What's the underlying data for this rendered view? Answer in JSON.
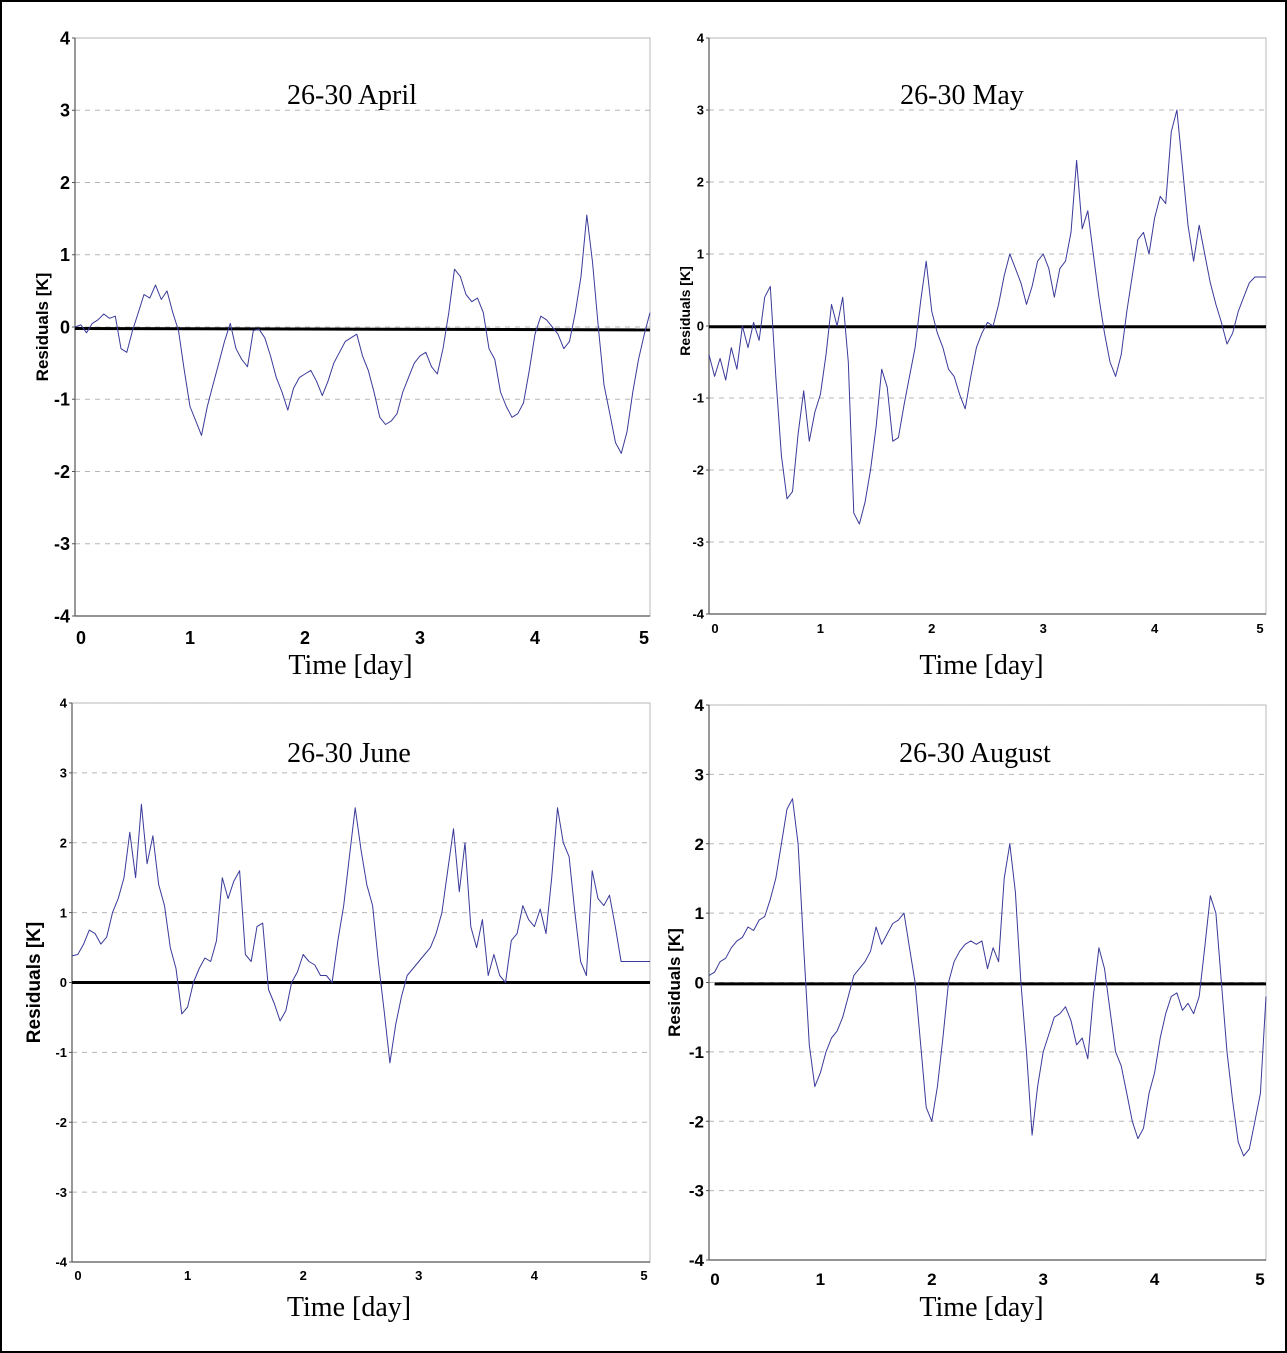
{
  "chart_data": [
    {
      "type": "line",
      "title": "26-30 April",
      "xlabel": "Time [day]",
      "ylabel": "Residuals [K]",
      "xlim": [
        0,
        5
      ],
      "ylim": [
        -4,
        4
      ],
      "xticks": [
        "0",
        "1",
        "2",
        "3",
        "4",
        "5"
      ],
      "yticks": [
        "4",
        "3",
        "2",
        "1",
        "0",
        "-1",
        "-2",
        "-3",
        "-4"
      ],
      "grid": true,
      "baseline": [
        [
          0,
          -0.02
        ],
        [
          5,
          -0.04
        ]
      ],
      "series": [
        {
          "color": "#3a3a9a",
          "x": [
            0,
            0.05,
            0.1,
            0.15,
            0.2,
            0.25,
            0.3,
            0.35,
            0.4,
            0.45,
            0.5,
            0.55,
            0.6,
            0.65,
            0.7,
            0.75,
            0.8,
            0.85,
            0.9,
            0.95,
            1.0,
            1.05,
            1.1,
            1.15,
            1.2,
            1.25,
            1.3,
            1.35,
            1.4,
            1.45,
            1.5,
            1.55,
            1.6,
            1.65,
            1.7,
            1.75,
            1.8,
            1.85,
            1.9,
            1.95,
            2.0,
            2.05,
            2.1,
            2.15,
            2.2,
            2.25,
            2.3,
            2.35,
            2.4,
            2.45,
            2.5,
            2.55,
            2.6,
            2.65,
            2.7,
            2.75,
            2.8,
            2.85,
            2.9,
            2.95,
            3.0,
            3.05,
            3.1,
            3.15,
            3.2,
            3.25,
            3.3,
            3.35,
            3.4,
            3.45,
            3.5,
            3.55,
            3.6,
            3.65,
            3.7,
            3.75,
            3.8,
            3.85,
            3.9,
            3.95,
            4.0,
            4.05,
            4.1,
            4.15,
            4.2,
            4.25,
            4.3,
            4.35,
            4.4,
            4.45,
            4.5,
            4.55,
            4.6,
            4.65,
            4.7,
            4.75,
            4.8,
            4.85,
            4.9,
            4.95,
            5.0
          ],
          "y": [
            0.0,
            0.03,
            -0.08,
            0.05,
            0.1,
            0.18,
            0.12,
            0.15,
            -0.3,
            -0.35,
            -0.05,
            0.2,
            0.45,
            0.4,
            0.58,
            0.38,
            0.5,
            0.2,
            -0.05,
            -0.6,
            -1.1,
            -1.3,
            -1.5,
            -1.1,
            -0.8,
            -0.5,
            -0.2,
            0.05,
            -0.3,
            -0.45,
            -0.55,
            -0.05,
            -0.03,
            -0.15,
            -0.4,
            -0.7,
            -0.9,
            -1.15,
            -0.85,
            -0.7,
            -0.65,
            -0.6,
            -0.75,
            -0.95,
            -0.75,
            -0.5,
            -0.35,
            -0.2,
            -0.15,
            -0.1,
            -0.4,
            -0.6,
            -0.9,
            -1.25,
            -1.35,
            -1.3,
            -1.2,
            -0.9,
            -0.7,
            -0.5,
            -0.4,
            -0.35,
            -0.55,
            -0.65,
            -0.3,
            0.2,
            0.8,
            0.7,
            0.45,
            0.35,
            0.4,
            0.2,
            -0.3,
            -0.45,
            -0.9,
            -1.1,
            -1.25,
            -1.2,
            -1.05,
            -0.6,
            -0.1,
            0.15,
            0.1,
            0.0,
            -0.1,
            -0.3,
            -0.2,
            0.2,
            0.7,
            1.55,
            0.9,
            0.0,
            -0.8,
            -1.2,
            -1.6,
            -1.75,
            -1.45,
            -0.9,
            -0.45,
            -0.1,
            0.2
          ]
        }
      ]
    },
    {
      "type": "line",
      "title": "26-30 May",
      "xlabel": "Time [day]",
      "ylabel": "Residuals [K]",
      "xlim": [
        0,
        5
      ],
      "ylim": [
        -4,
        4
      ],
      "xticks": [
        "0",
        "1",
        "2",
        "3",
        "4",
        "5"
      ],
      "yticks": [
        "4",
        "3",
        "2",
        "1",
        "0",
        "-1",
        "-2",
        "-3",
        "-4"
      ],
      "grid": true,
      "baseline": [
        [
          0,
          -0.01
        ],
        [
          5,
          -0.01
        ]
      ],
      "series": [
        {
          "color": "#3a3a9a",
          "x": [
            0,
            0.05,
            0.1,
            0.15,
            0.2,
            0.25,
            0.3,
            0.35,
            0.4,
            0.45,
            0.5,
            0.55,
            0.6,
            0.65,
            0.7,
            0.75,
            0.8,
            0.85,
            0.9,
            0.95,
            1.0,
            1.05,
            1.1,
            1.15,
            1.2,
            1.25,
            1.3,
            1.35,
            1.4,
            1.45,
            1.5,
            1.55,
            1.6,
            1.65,
            1.7,
            1.75,
            1.8,
            1.85,
            1.9,
            1.95,
            2.0,
            2.05,
            2.1,
            2.15,
            2.2,
            2.25,
            2.3,
            2.35,
            2.4,
            2.45,
            2.5,
            2.55,
            2.6,
            2.65,
            2.7,
            2.75,
            2.8,
            2.85,
            2.9,
            2.95,
            3.0,
            3.05,
            3.1,
            3.15,
            3.2,
            3.25,
            3.3,
            3.35,
            3.4,
            3.45,
            3.5,
            3.55,
            3.6,
            3.65,
            3.7,
            3.75,
            3.8,
            3.85,
            3.9,
            3.95,
            4.0,
            4.05,
            4.1,
            4.15,
            4.2,
            4.25,
            4.3,
            4.35,
            4.4,
            4.45,
            4.5,
            4.55,
            4.6,
            4.65,
            4.7,
            4.75,
            4.8,
            4.85,
            4.9,
            4.95,
            5.0
          ],
          "y": [
            -0.4,
            -0.7,
            -0.45,
            -0.75,
            -0.3,
            -0.6,
            0.0,
            -0.3,
            0.05,
            -0.2,
            0.4,
            0.55,
            -0.7,
            -1.8,
            -2.4,
            -2.3,
            -1.5,
            -0.9,
            -1.6,
            -1.2,
            -0.95,
            -0.4,
            0.3,
            0.0,
            0.4,
            -0.5,
            -2.6,
            -2.75,
            -2.45,
            -2.0,
            -1.4,
            -0.6,
            -0.85,
            -1.6,
            -1.55,
            -1.1,
            -0.7,
            -0.3,
            0.35,
            0.9,
            0.2,
            -0.1,
            -0.3,
            -0.6,
            -0.7,
            -0.95,
            -1.15,
            -0.7,
            -0.3,
            -0.1,
            0.05,
            0.0,
            0.3,
            0.7,
            1.0,
            0.8,
            0.6,
            0.3,
            0.55,
            0.9,
            1.0,
            0.8,
            0.4,
            0.8,
            0.9,
            1.3,
            2.3,
            1.35,
            1.6,
            1.0,
            0.4,
            -0.1,
            -0.5,
            -0.7,
            -0.4,
            0.2,
            0.7,
            1.2,
            1.3,
            1.0,
            1.5,
            1.8,
            1.7,
            2.7,
            3.0,
            2.2,
            1.4,
            0.9,
            1.4,
            1.0,
            0.6,
            0.3,
            0.05,
            -0.25,
            -0.1,
            0.2,
            0.4,
            0.6,
            0.68,
            0.68,
            0.68
          ],
          "xscale_note": ""
        }
      ]
    },
    {
      "type": "line",
      "title": "26-30 June",
      "xlabel": "Time [day]",
      "ylabel": "Residuals [K]",
      "xlim": [
        0,
        5
      ],
      "ylim": [
        -4,
        4
      ],
      "xticks": [
        "0",
        "1",
        "2",
        "3",
        "4",
        "5"
      ],
      "yticks": [
        "4",
        "3",
        "2",
        "1",
        "0",
        "-1",
        "-2",
        "-3",
        "-4"
      ],
      "grid": true,
      "baseline": [
        [
          0,
          0.0
        ],
        [
          5,
          0.0
        ]
      ],
      "series": [
        {
          "color": "#3a3a9a",
          "x": [
            0,
            0.05,
            0.1,
            0.15,
            0.2,
            0.25,
            0.3,
            0.35,
            0.4,
            0.45,
            0.5,
            0.55,
            0.6,
            0.65,
            0.7,
            0.75,
            0.8,
            0.85,
            0.9,
            0.95,
            1.0,
            1.05,
            1.1,
            1.15,
            1.2,
            1.25,
            1.3,
            1.35,
            1.4,
            1.45,
            1.5,
            1.55,
            1.6,
            1.65,
            1.7,
            1.75,
            1.8,
            1.85,
            1.9,
            1.95,
            2.0,
            2.05,
            2.1,
            2.15,
            2.2,
            2.25,
            2.3,
            2.35,
            2.4,
            2.45,
            2.5,
            2.55,
            2.6,
            2.65,
            2.7,
            2.75,
            2.8,
            2.85,
            2.9,
            2.95,
            3.0,
            3.05,
            3.1,
            3.15,
            3.2,
            3.25,
            3.3,
            3.35,
            3.4,
            3.45,
            3.5,
            3.55,
            3.6,
            3.65,
            3.7,
            3.75,
            3.8,
            3.85,
            3.9,
            3.95,
            4.0,
            4.05,
            4.1,
            4.15,
            4.2,
            4.25,
            4.3,
            4.35,
            4.4,
            4.45,
            4.5,
            4.55,
            4.6,
            4.65,
            4.7,
            4.75,
            4.8,
            4.85,
            4.9,
            4.95,
            5.0
          ],
          "y": [
            0.38,
            0.4,
            0.55,
            0.75,
            0.7,
            0.55,
            0.65,
            1.0,
            1.2,
            1.5,
            2.15,
            1.5,
            2.55,
            1.7,
            2.1,
            1.4,
            1.1,
            0.5,
            0.2,
            -0.45,
            -0.35,
            0.0,
            0.2,
            0.35,
            0.3,
            0.6,
            1.5,
            1.2,
            1.45,
            1.6,
            0.4,
            0.3,
            0.8,
            0.85,
            -0.1,
            -0.3,
            -0.55,
            -0.4,
            0.0,
            0.15,
            0.4,
            0.3,
            0.25,
            0.1,
            0.1,
            0.0,
            0.6,
            1.1,
            1.8,
            2.5,
            1.9,
            1.4,
            1.1,
            0.3,
            -0.4,
            -1.15,
            -0.6,
            -0.2,
            0.1,
            0.2,
            0.3,
            0.4,
            0.5,
            0.7,
            1.0,
            1.6,
            2.2,
            1.3,
            2.0,
            0.8,
            0.5,
            0.9,
            0.1,
            0.4,
            0.1,
            0.0,
            0.6,
            0.7,
            1.1,
            0.9,
            0.8,
            1.05,
            0.7,
            1.5,
            2.5,
            2.0,
            1.8,
            1.0,
            0.3,
            0.1,
            1.6,
            1.2,
            1.1,
            1.25,
            0.8,
            0.3,
            0.3,
            0.3,
            0.3,
            0.3,
            0.3
          ]
        }
      ]
    },
    {
      "type": "line",
      "title": "26-30 August",
      "xlabel": "Time [day]",
      "ylabel": "Residuals [K]",
      "xlim": [
        0,
        5
      ],
      "ylim": [
        -4,
        4
      ],
      "xticks": [
        "0",
        "1",
        "2",
        "3",
        "4",
        "5"
      ],
      "yticks": [
        "4",
        "3",
        "2",
        "1",
        "0",
        "-1",
        "-2",
        "-3",
        "-4"
      ],
      "grid": true,
      "baseline": [
        [
          0.05,
          -0.02
        ],
        [
          5,
          -0.02
        ]
      ],
      "series": [
        {
          "color": "#3a3a9a",
          "x": [
            0,
            0.05,
            0.1,
            0.15,
            0.2,
            0.25,
            0.3,
            0.35,
            0.4,
            0.45,
            0.5,
            0.55,
            0.6,
            0.65,
            0.7,
            0.75,
            0.8,
            0.85,
            0.9,
            0.95,
            1.0,
            1.05,
            1.1,
            1.15,
            1.2,
            1.25,
            1.3,
            1.35,
            1.4,
            1.45,
            1.5,
            1.55,
            1.6,
            1.65,
            1.7,
            1.75,
            1.8,
            1.85,
            1.9,
            1.95,
            2.0,
            2.05,
            2.1,
            2.15,
            2.2,
            2.25,
            2.3,
            2.35,
            2.4,
            2.45,
            2.5,
            2.55,
            2.6,
            2.65,
            2.7,
            2.75,
            2.8,
            2.85,
            2.9,
            2.95,
            3.0,
            3.05,
            3.1,
            3.15,
            3.2,
            3.25,
            3.3,
            3.35,
            3.4,
            3.45,
            3.5,
            3.55,
            3.6,
            3.65,
            3.7,
            3.75,
            3.8,
            3.85,
            3.9,
            3.95,
            4.0,
            4.05,
            4.1,
            4.15,
            4.2,
            4.25,
            4.3,
            4.35,
            4.4,
            4.45,
            4.5,
            4.55,
            4.6,
            4.65,
            4.7,
            4.75,
            4.8,
            4.85,
            4.9,
            4.95,
            5.0
          ],
          "y": [
            0.1,
            0.15,
            0.3,
            0.35,
            0.5,
            0.6,
            0.65,
            0.8,
            0.75,
            0.9,
            0.95,
            1.2,
            1.5,
            2.0,
            2.5,
            2.65,
            2.0,
            0.5,
            -0.9,
            -1.5,
            -1.3,
            -1.0,
            -0.8,
            -0.7,
            -0.5,
            -0.2,
            0.1,
            0.2,
            0.3,
            0.45,
            0.8,
            0.55,
            0.7,
            0.85,
            0.9,
            1.0,
            0.5,
            0.0,
            -0.9,
            -1.8,
            -2.0,
            -1.5,
            -0.8,
            0.0,
            0.3,
            0.45,
            0.55,
            0.6,
            0.55,
            0.6,
            0.2,
            0.5,
            0.3,
            1.5,
            2.0,
            1.3,
            0.0,
            -1.0,
            -2.2,
            -1.5,
            -1.0,
            -0.75,
            -0.5,
            -0.45,
            -0.35,
            -0.55,
            -0.9,
            -0.8,
            -1.1,
            -0.2,
            0.5,
            0.2,
            -0.4,
            -1.0,
            -1.2,
            -1.6,
            -2.0,
            -2.25,
            -2.1,
            -1.6,
            -1.3,
            -0.8,
            -0.45,
            -0.2,
            -0.15,
            -0.4,
            -0.3,
            -0.45,
            -0.2,
            0.5,
            1.25,
            1.0,
            0.0,
            -1.0,
            -1.7,
            -2.3,
            -2.5,
            -2.4,
            -2.0,
            -1.6,
            -0.2
          ]
        }
      ]
    }
  ]
}
